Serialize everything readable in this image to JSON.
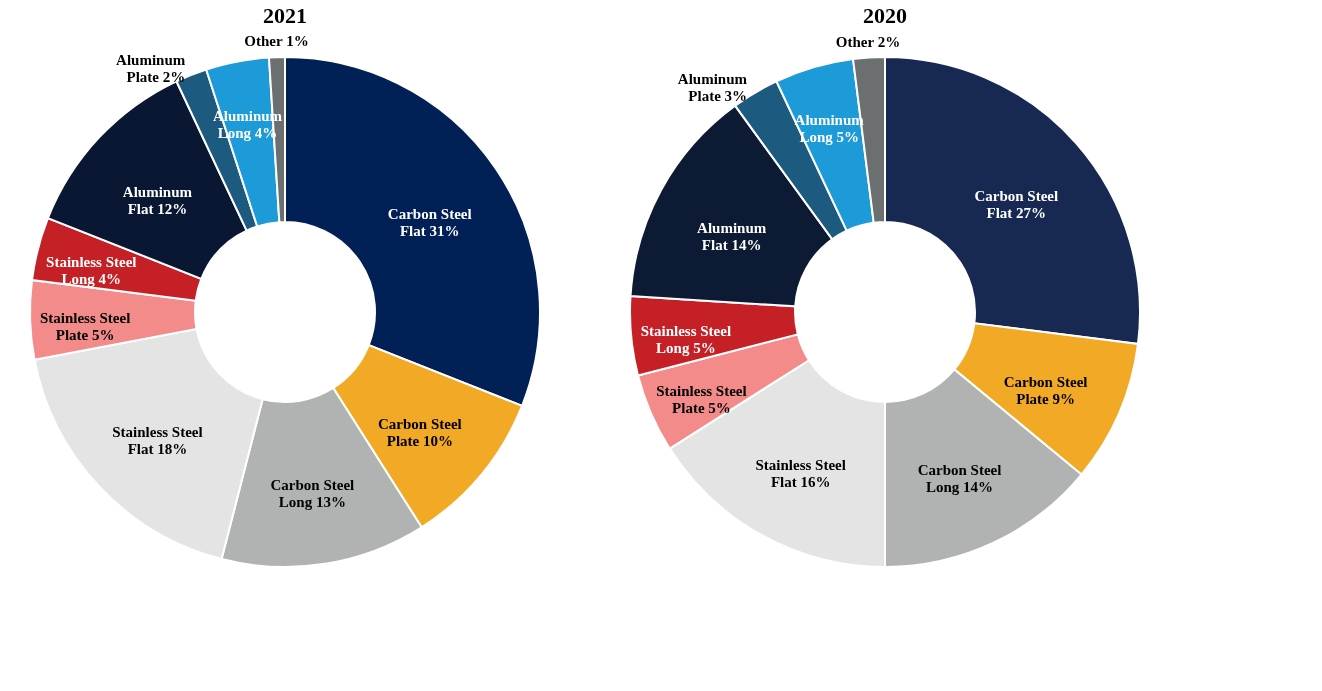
{
  "chart_data": [
    {
      "type": "donut",
      "title": "2021",
      "legend": false,
      "categories": [
        "Carbon Steel Flat",
        "Carbon Steel Plate",
        "Carbon Steel Long",
        "Stainless Steel Flat",
        "Stainless Steel Plate",
        "Stainless Steel Long",
        "Aluminum Flat",
        "Aluminum Plate",
        "Aluminum Long",
        "Other"
      ],
      "values": [
        31,
        10,
        13,
        18,
        5,
        4,
        12,
        2,
        4,
        1
      ],
      "value_labels": [
        "31%",
        "10%",
        "13%",
        "18%",
        "5%",
        "4%",
        "12%",
        "2%",
        "4%",
        "1%"
      ],
      "colors": [
        "#012055",
        "#f2a925",
        "#b1b3b3",
        "#e4e4e4",
        "#f28b8a",
        "#c52026",
        "#0a1733",
        "#1d5a7f",
        "#1d9ad8",
        "#6b6f6f"
      ]
    },
    {
      "type": "donut",
      "title": "2020",
      "legend": false,
      "categories": [
        "Carbon Steel Flat",
        "Carbon Steel Plate",
        "Carbon Steel Long",
        "Stainless Steel Flat",
        "Stainless Steel Plate",
        "Stainless Steel Long",
        "Aluminum Flat",
        "Aluminum Plate",
        "Aluminum Long",
        "Other"
      ],
      "values": [
        27,
        9,
        14,
        16,
        5,
        5,
        14,
        3,
        5,
        2
      ],
      "value_labels": [
        "27%",
        "9%",
        "14%",
        "16%",
        "5%",
        "5%",
        "14%",
        "3%",
        "5%",
        "2%"
      ],
      "colors": [
        "#172952",
        "#f2a925",
        "#b1b3b3",
        "#e4e4e4",
        "#f28b8a",
        "#c52026",
        "#0c1a33",
        "#1d5a7f",
        "#1d9ad8",
        "#6b6f6f"
      ]
    }
  ]
}
